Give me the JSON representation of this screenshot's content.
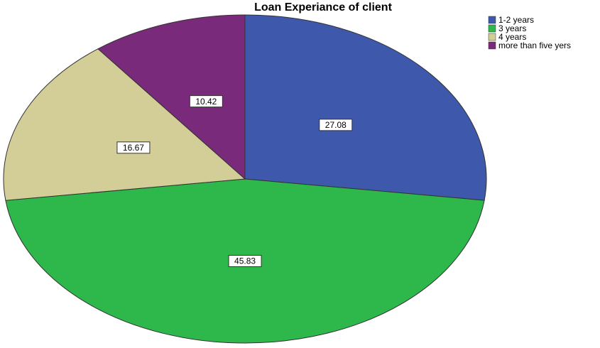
{
  "chart_data": {
    "type": "pie",
    "title": "Loan Experiance of client",
    "categories": [
      "1-2 years",
      "3 years",
      "4 years",
      "more than five yers"
    ],
    "values": [
      27.08,
      45.83,
      16.67,
      10.42
    ],
    "colors": [
      "#3e58ac",
      "#2eb84b",
      "#d3ce97",
      "#7a2a7a"
    ],
    "legend": "top-right"
  }
}
